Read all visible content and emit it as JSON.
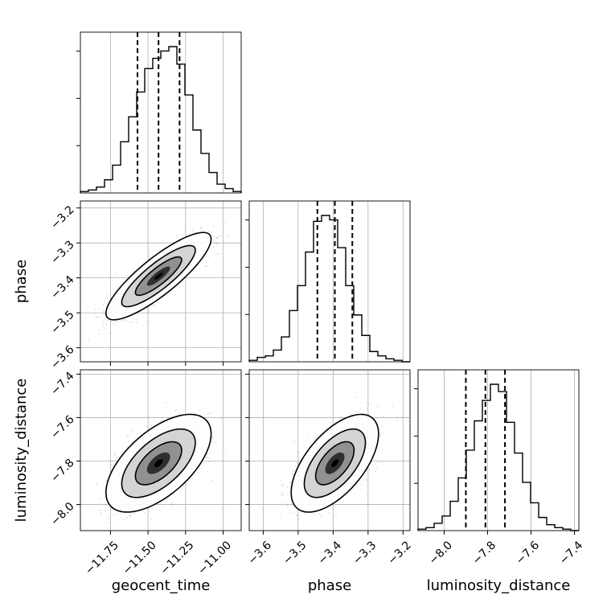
{
  "chart_data": {
    "type": "corner",
    "parameters": [
      "geocent_time",
      "phase",
      "luminosity_distance"
    ],
    "ranges": [
      [
        -11.95,
        -10.88
      ],
      [
        -3.64,
        -3.18
      ],
      [
        -8.12,
        -7.38
      ]
    ],
    "ticks": [
      {
        "values": [
          -11.75,
          -11.5,
          -11.25,
          -11.0
        ],
        "labels": [
          "−11.75",
          "−11.50",
          "−11.25",
          "−11.00"
        ]
      },
      {
        "values": [
          -3.6,
          -3.5,
          -3.4,
          -3.3,
          -3.2
        ],
        "labels": [
          "−3.6",
          "−3.5",
          "−3.4",
          "−3.3",
          "−3.2"
        ]
      },
      {
        "values": [
          -8.0,
          -7.8,
          -7.6,
          -7.4
        ],
        "labels": [
          "−8.0",
          "−7.8",
          "−7.6",
          "−7.4"
        ]
      }
    ],
    "quantiles": [
      [
        -11.57,
        -11.43,
        -11.29
      ],
      [
        -3.445,
        -3.395,
        -3.345
      ],
      [
        -7.9,
        -7.81,
        -7.72
      ]
    ],
    "histograms": [
      [
        0.01,
        0.02,
        0.04,
        0.09,
        0.19,
        0.35,
        0.52,
        0.69,
        0.85,
        0.92,
        0.97,
        1.0,
        0.88,
        0.67,
        0.43,
        0.27,
        0.14,
        0.06,
        0.03,
        0.01
      ],
      [
        0.01,
        0.03,
        0.04,
        0.08,
        0.17,
        0.35,
        0.52,
        0.75,
        0.96,
        1.0,
        0.97,
        0.78,
        0.52,
        0.32,
        0.18,
        0.07,
        0.04,
        0.02,
        0.01,
        0.0
      ],
      [
        0.01,
        0.02,
        0.05,
        0.1,
        0.2,
        0.36,
        0.55,
        0.75,
        0.89,
        1.0,
        0.95,
        0.74,
        0.53,
        0.33,
        0.19,
        0.09,
        0.04,
        0.02,
        0.01,
        0.0
      ]
    ],
    "pairs": [
      {
        "x": 0,
        "y": 1,
        "mean": [
          -11.43,
          -3.395
        ],
        "sd": [
          0.14,
          0.05
        ],
        "corr": 0.85
      },
      {
        "x": 0,
        "y": 2,
        "mean": [
          -11.43,
          -7.81
        ],
        "sd": [
          0.14,
          0.09
        ],
        "corr": 0.6
      },
      {
        "x": 1,
        "y": 2,
        "mean": [
          -3.395,
          -7.81
        ],
        "sd": [
          0.05,
          0.09
        ],
        "corr": 0.6
      }
    ],
    "grid": true
  }
}
